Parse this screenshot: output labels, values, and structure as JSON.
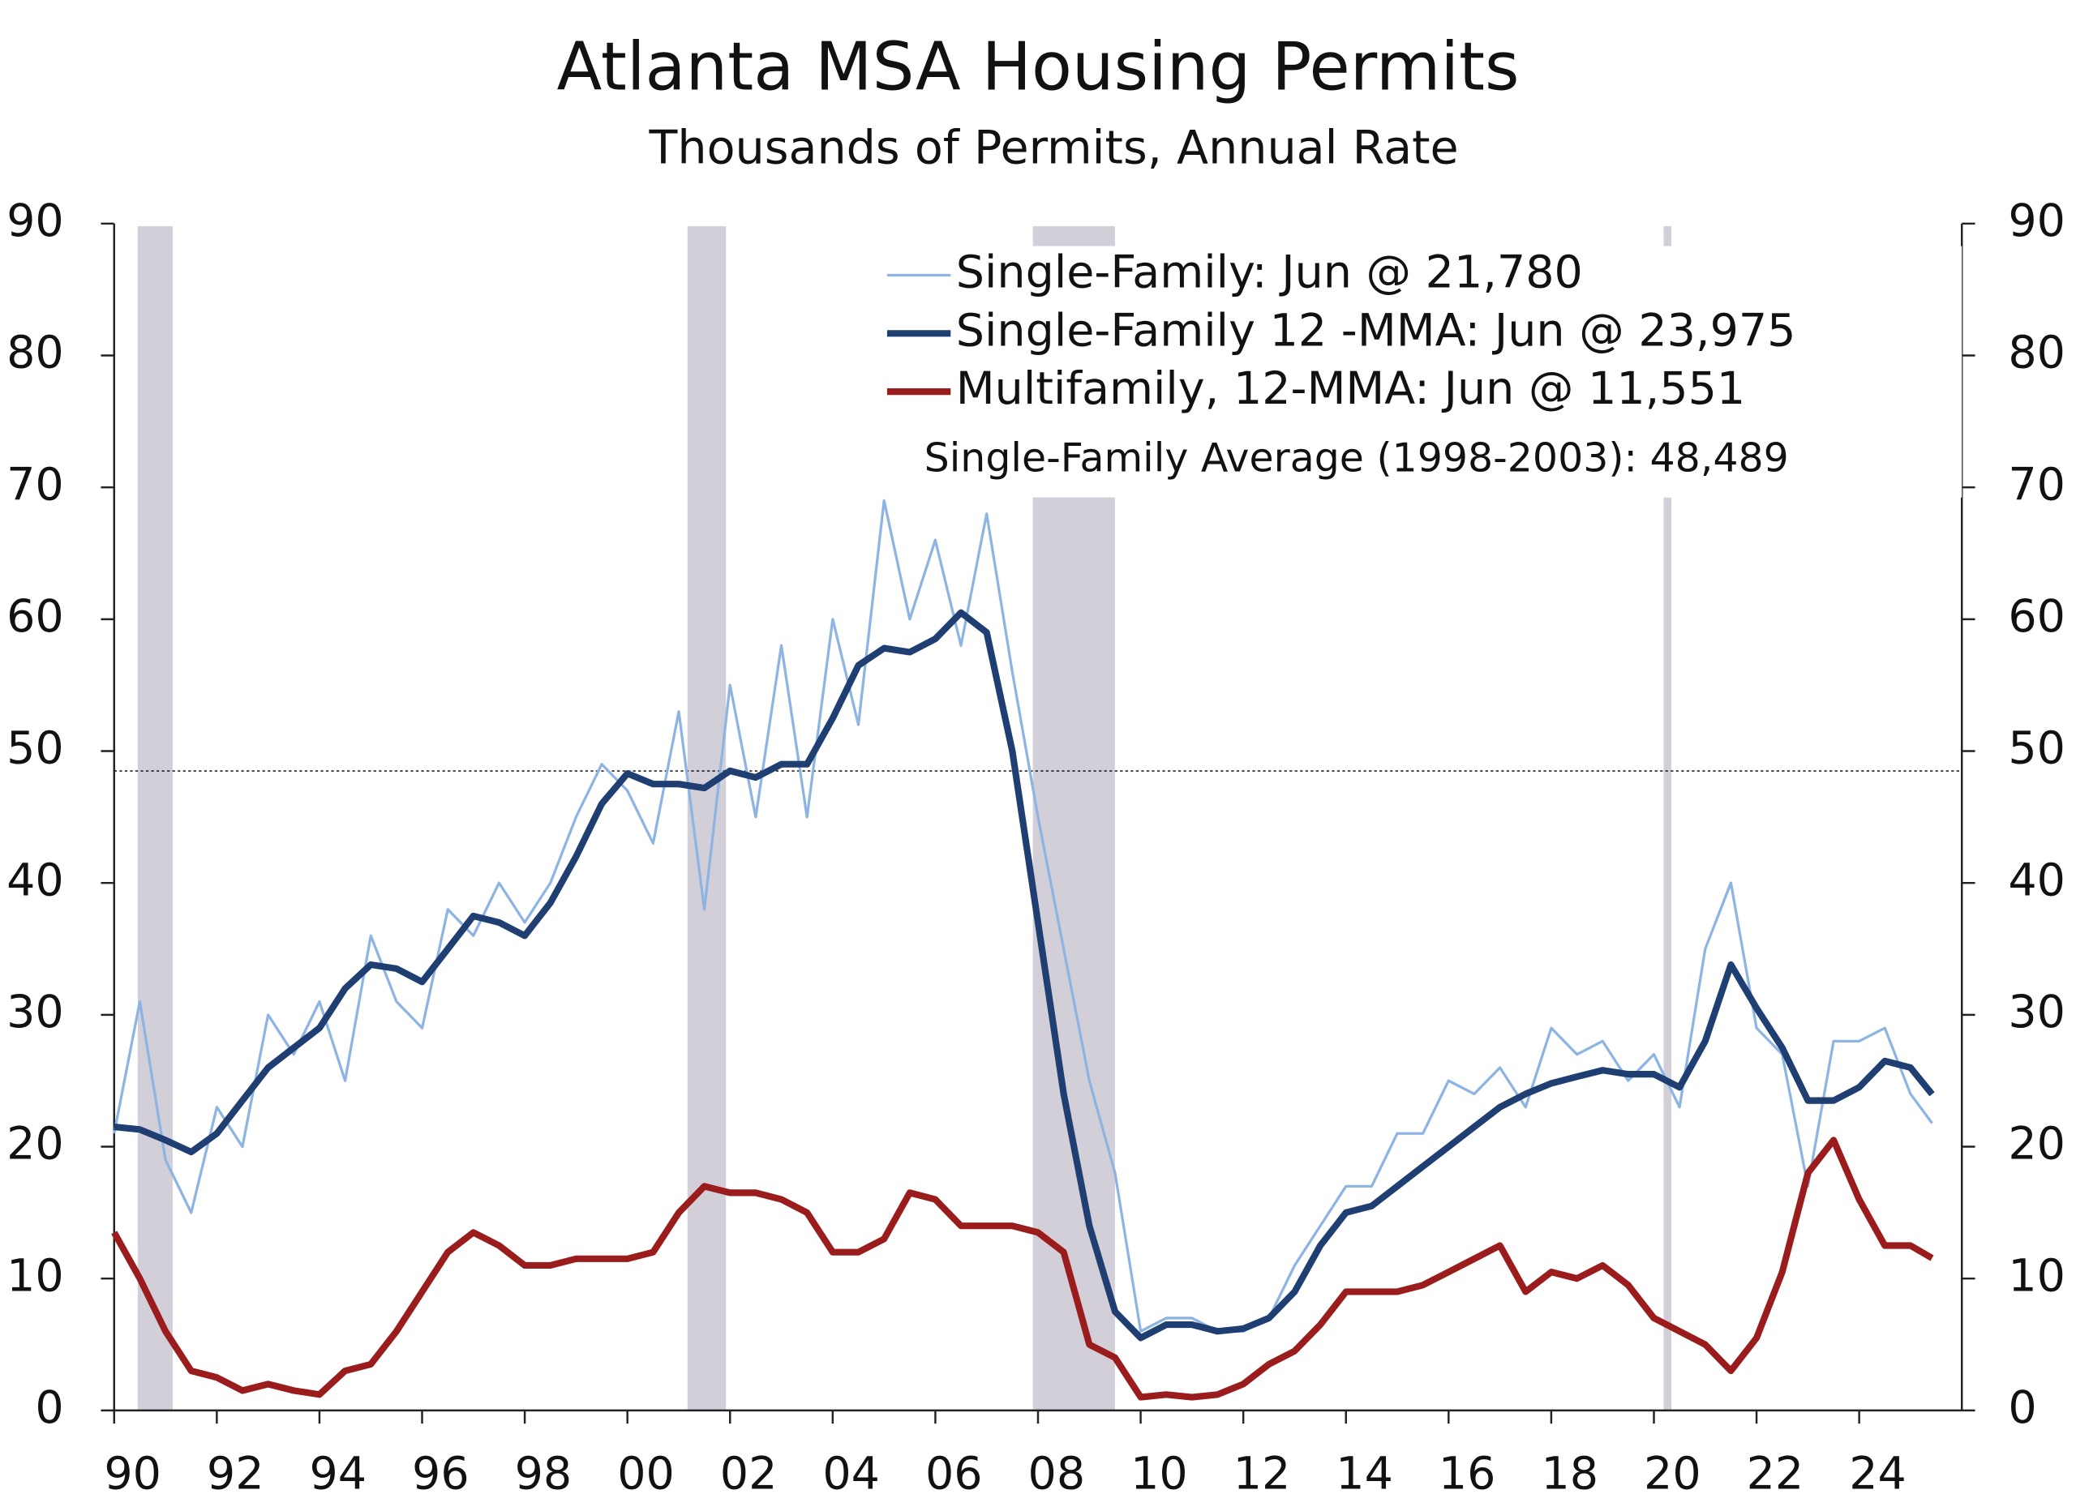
{
  "chart_data": {
    "type": "line",
    "title": "Atlanta MSA Housing Permits",
    "subtitle": "Thousands of Permits, Annual Rate",
    "x": [
      1990,
      1990.5,
      1991,
      1991.5,
      1992,
      1992.5,
      1993,
      1993.5,
      1994,
      1994.5,
      1995,
      1995.5,
      1996,
      1996.5,
      1997,
      1997.5,
      1998,
      1998.5,
      1999,
      1999.5,
      2000,
      2000.5,
      2001,
      2001.5,
      2002,
      2002.5,
      2003,
      2003.5,
      2004,
      2004.5,
      2005,
      2005.5,
      2006,
      2006.5,
      2007,
      2007.5,
      2008,
      2008.5,
      2009,
      2009.5,
      2010,
      2010.5,
      2011,
      2011.5,
      2012,
      2012.5,
      2013,
      2013.5,
      2014,
      2014.5,
      2015,
      2015.5,
      2016,
      2016.5,
      2017,
      2017.5,
      2018,
      2018.5,
      2019,
      2019.5,
      2020,
      2020.5,
      2021,
      2021.5,
      2022,
      2022.5,
      2023,
      2023.5,
      2024,
      2024.5,
      2025,
      2025.42
    ],
    "series": [
      {
        "name": "Single-Family: Jun @ 21,780",
        "color": "#8db4e2",
        "width": 2,
        "values": [
          21,
          31,
          19,
          15,
          23,
          20,
          30,
          27,
          31,
          25,
          36,
          31,
          29,
          38,
          36,
          40,
          37,
          40,
          45,
          49,
          47,
          43,
          53,
          38,
          55,
          45,
          58,
          45,
          60,
          52,
          69,
          60,
          66,
          58,
          68,
          56,
          45,
          35,
          25,
          18,
          6,
          7,
          7,
          6,
          6,
          7,
          11,
          14,
          17,
          17,
          21,
          21,
          25,
          24,
          26,
          23,
          29,
          27,
          28,
          25,
          27,
          23,
          35,
          40,
          29,
          27,
          17,
          28,
          28,
          29,
          24,
          21.78
        ]
      },
      {
        "name": "Single-Family 12 -MMA: Jun @ 23,975",
        "color": "#1f3f73",
        "width": 5,
        "values": [
          21.5,
          21.3,
          20.5,
          19.6,
          21,
          23.5,
          26,
          27.5,
          29,
          32,
          33.8,
          33.5,
          32.5,
          35,
          37.5,
          37,
          36,
          38.5,
          42,
          46,
          48.3,
          47.5,
          47.5,
          47.2,
          48.5,
          48,
          49,
          49,
          52.5,
          56.5,
          57.8,
          57.5,
          58.5,
          60.5,
          59,
          50,
          37,
          24,
          14,
          7.5,
          5.5,
          6.5,
          6.5,
          6,
          6.2,
          7,
          9,
          12.5,
          15,
          15.5,
          17,
          18.5,
          20,
          21.5,
          23,
          24,
          24.8,
          25.3,
          25.8,
          25.5,
          25.5,
          24.5,
          28,
          33.8,
          30.5,
          27.5,
          23.5,
          23.5,
          24.5,
          26.5,
          26,
          23.975
        ]
      },
      {
        "name": "Multifamily, 12-MMA: Jun @ 11,551",
        "color": "#9b1c1c",
        "width": 5,
        "values": [
          13.5,
          10,
          6,
          3,
          2.5,
          1.5,
          2,
          1.5,
          1.2,
          3,
          3.5,
          6,
          9,
          12,
          13.5,
          12.5,
          11,
          11,
          11.5,
          11.5,
          11.5,
          12,
          15,
          17,
          16.5,
          16.5,
          16,
          15,
          12,
          12,
          13,
          16.5,
          16,
          14,
          14,
          14,
          13.5,
          12,
          5,
          4,
          1,
          1.2,
          1,
          1.2,
          2,
          3.5,
          4.5,
          6.5,
          9,
          9,
          9,
          9.5,
          10.5,
          11.5,
          12.5,
          9,
          10.5,
          10,
          11,
          9.5,
          7,
          6,
          5,
          3,
          5.5,
          10.5,
          18,
          20.5,
          16,
          12.5,
          12.5,
          11.551
        ]
      }
    ],
    "average_line": 48.489,
    "annotation": "Single-Family Average (1998-2003): 48,489",
    "recessions": [
      [
        1990.46,
        1991.14
      ],
      [
        2001.17,
        2001.92
      ],
      [
        2007.9,
        2009.5
      ],
      [
        2020.19,
        2020.34
      ]
    ],
    "xlim": [
      1990,
      2026
    ],
    "ylim": [
      0,
      90
    ],
    "xticks": [
      {
        "value": 1990,
        "label": "90"
      },
      {
        "value": 1992,
        "label": "92"
      },
      {
        "value": 1994,
        "label": "94"
      },
      {
        "value": 1996,
        "label": "96"
      },
      {
        "value": 1998,
        "label": "98"
      },
      {
        "value": 2000,
        "label": "00"
      },
      {
        "value": 2002,
        "label": "02"
      },
      {
        "value": 2004,
        "label": "04"
      },
      {
        "value": 2006,
        "label": "06"
      },
      {
        "value": 2008,
        "label": "08"
      },
      {
        "value": 2010,
        "label": "10"
      },
      {
        "value": 2012,
        "label": "12"
      },
      {
        "value": 2014,
        "label": "14"
      },
      {
        "value": 2016,
        "label": "16"
      },
      {
        "value": 2018,
        "label": "18"
      },
      {
        "value": 2020,
        "label": "20"
      },
      {
        "value": 2022,
        "label": "22"
      },
      {
        "value": 2024,
        "label": "24"
      }
    ],
    "yticks": [
      0,
      10,
      20,
      30,
      40,
      50,
      60,
      70,
      80,
      90
    ],
    "legend": "upper right"
  }
}
